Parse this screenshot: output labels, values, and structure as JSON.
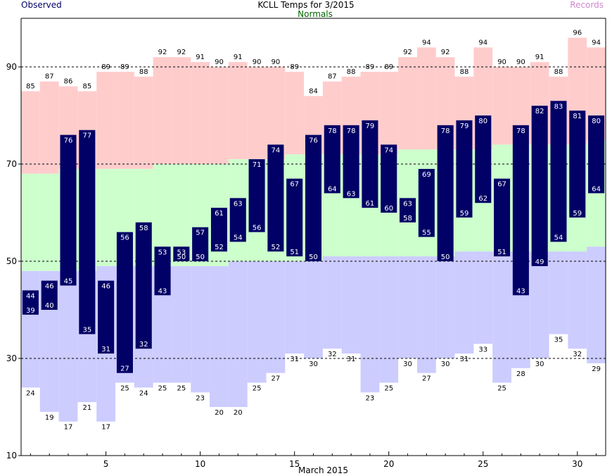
{
  "chart_data": {
    "type": "bar",
    "title": "KCLL Temps for  3/2015",
    "xlabel": "March 2015",
    "ylabel": "",
    "legend": {
      "observed": "Observed",
      "normals": "Normals",
      "records": "Records"
    },
    "colors": {
      "observed": "#000066",
      "observed_text": "#ffffff",
      "record_high_fill": "#ffcccc",
      "normal_fill": "#ccffcc",
      "record_low_fill": "#ccccff",
      "legend_observed": "#000066",
      "legend_normals": "#006600",
      "legend_records": "#cc88cc",
      "axis": "#000000",
      "grid": "#000000"
    },
    "grid_dashed": true,
    "ylim": [
      10,
      100
    ],
    "xlim": [
      0.5,
      31.5
    ],
    "yticks": [
      10,
      30,
      50,
      70,
      90
    ],
    "xticks": [
      5,
      10,
      15,
      20,
      25,
      30
    ],
    "days": [
      1,
      2,
      3,
      4,
      5,
      6,
      7,
      8,
      9,
      10,
      11,
      12,
      13,
      14,
      15,
      16,
      17,
      18,
      19,
      20,
      21,
      22,
      23,
      24,
      25,
      26,
      27,
      28,
      29,
      30,
      31
    ],
    "record_high": [
      85,
      87,
      86,
      85,
      89,
      89,
      88,
      92,
      92,
      91,
      90,
      91,
      90,
      90,
      89,
      84,
      87,
      88,
      89,
      89,
      92,
      94,
      92,
      88,
      94,
      90,
      90,
      91,
      88,
      96,
      94
    ],
    "normal_high": [
      68,
      68,
      69,
      69,
      69,
      69,
      69,
      70,
      70,
      70,
      70,
      71,
      71,
      71,
      72,
      72,
      72,
      72,
      72,
      72,
      73,
      73,
      73,
      73,
      73,
      74,
      74,
      74,
      74,
      74,
      75
    ],
    "normal_low": [
      48,
      48,
      48,
      48,
      49,
      49,
      49,
      49,
      49,
      49,
      49,
      50,
      50,
      50,
      50,
      50,
      51,
      51,
      51,
      51,
      51,
      51,
      51,
      52,
      52,
      52,
      52,
      52,
      52,
      52,
      53
    ],
    "record_low": [
      24,
      19,
      17,
      21,
      17,
      25,
      24,
      25,
      25,
      23,
      20,
      20,
      25,
      27,
      31,
      30,
      32,
      31,
      23,
      25,
      30,
      27,
      30,
      31,
      33,
      25,
      28,
      30,
      35,
      32,
      29
    ],
    "observed_high": [
      44,
      46,
      76,
      77,
      46,
      56,
      58,
      53,
      53,
      57,
      61,
      63,
      71,
      74,
      67,
      76,
      78,
      78,
      79,
      74,
      63,
      69,
      78,
      79,
      80,
      67,
      78,
      82,
      83,
      81,
      80
    ],
    "observed_low": [
      39,
      40,
      45,
      35,
      31,
      27,
      32,
      43,
      50,
      50,
      52,
      54,
      56,
      52,
      51,
      50,
      64,
      63,
      61,
      60,
      58,
      55,
      50,
      59,
      62,
      51,
      43,
      49,
      54,
      59,
      64
    ]
  }
}
